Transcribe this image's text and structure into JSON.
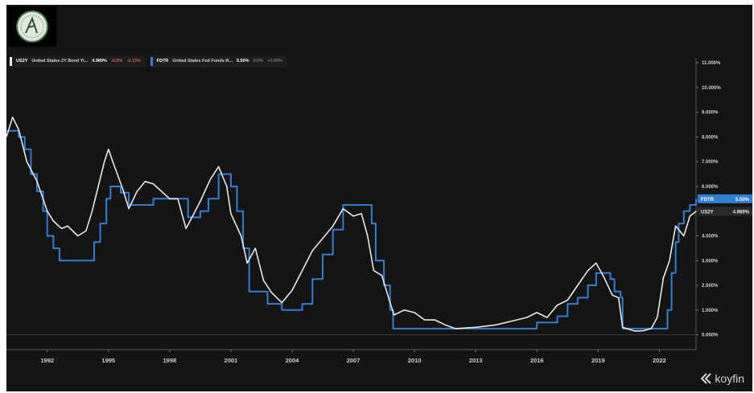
{
  "legend": [
    {
      "code": "US2Y",
      "name": "United States 2Y Bond Yi...",
      "value": "4.989%",
      "change1": "-0.0%",
      "change2": "-0.13%",
      "color": "#e8e8e8"
    },
    {
      "code": "FDTR",
      "name": "United States Fed Funds R...",
      "value": "5.50%",
      "change1": "0.0%",
      "change2": "+0.00%",
      "color": "#2f7fd6"
    }
  ],
  "brand": "koyfin",
  "chart_data": {
    "type": "line",
    "x_ticks": [
      "1992",
      "1995",
      "1998",
      "2001",
      "2004",
      "2007",
      "2010",
      "2013",
      "2016",
      "2019",
      "2022"
    ],
    "x_tick_values": [
      1992,
      1995,
      1998,
      2001,
      2004,
      2007,
      2010,
      2013,
      2016,
      2019,
      2022
    ],
    "y_ticks": [
      "11.000%",
      "10.000%",
      "9.000%",
      "8.000%",
      "7.000%",
      "6.000%",
      "5.000%",
      "4.000%",
      "3.000%",
      "2.000%",
      "1.000%",
      "0.000%"
    ],
    "y_tick_values": [
      11,
      10,
      9,
      8,
      7,
      6,
      5,
      4,
      3,
      2,
      1,
      0
    ],
    "xlim": [
      1990.0,
      2023.8
    ],
    "ylim": [
      -0.6,
      11.2
    ],
    "grid": false,
    "end_labels": [
      {
        "code": "FDTR",
        "value": "5.50%",
        "color": "#2f7fd6"
      },
      {
        "code": "US2Y",
        "value": "4.989%",
        "color": "#e8e8e8"
      }
    ],
    "series": [
      {
        "name": "US2Y",
        "color": "#e8e8e8",
        "points": [
          [
            1990.0,
            8.0
          ],
          [
            1990.3,
            8.8
          ],
          [
            1990.6,
            8.3
          ],
          [
            1991.0,
            7.0
          ],
          [
            1991.5,
            6.2
          ],
          [
            1992.0,
            5.0
          ],
          [
            1992.3,
            4.6
          ],
          [
            1992.7,
            4.3
          ],
          [
            1993.0,
            4.4
          ],
          [
            1993.5,
            4.0
          ],
          [
            1993.9,
            4.2
          ],
          [
            1994.2,
            5.0
          ],
          [
            1994.5,
            6.0
          ],
          [
            1994.8,
            7.0
          ],
          [
            1995.0,
            7.5
          ],
          [
            1995.3,
            6.8
          ],
          [
            1995.7,
            5.9
          ],
          [
            1996.0,
            5.1
          ],
          [
            1996.4,
            5.8
          ],
          [
            1996.8,
            6.2
          ],
          [
            1997.2,
            6.1
          ],
          [
            1997.6,
            5.8
          ],
          [
            1998.0,
            5.5
          ],
          [
            1998.4,
            5.5
          ],
          [
            1998.8,
            4.3
          ],
          [
            1999.0,
            4.6
          ],
          [
            1999.5,
            5.4
          ],
          [
            2000.0,
            6.3
          ],
          [
            2000.4,
            6.8
          ],
          [
            2000.8,
            6.0
          ],
          [
            2001.0,
            4.9
          ],
          [
            2001.5,
            4.0
          ],
          [
            2001.8,
            2.9
          ],
          [
            2002.2,
            3.5
          ],
          [
            2002.6,
            2.2
          ],
          [
            2003.0,
            1.7
          ],
          [
            2003.5,
            1.3
          ],
          [
            2004.0,
            1.8
          ],
          [
            2004.5,
            2.6
          ],
          [
            2005.0,
            3.4
          ],
          [
            2005.5,
            3.9
          ],
          [
            2006.0,
            4.4
          ],
          [
            2006.5,
            5.1
          ],
          [
            2007.0,
            4.8
          ],
          [
            2007.4,
            4.9
          ],
          [
            2007.7,
            4.0
          ],
          [
            2008.0,
            2.6
          ],
          [
            2008.4,
            2.4
          ],
          [
            2008.8,
            1.3
          ],
          [
            2009.0,
            0.8
          ],
          [
            2009.5,
            1.0
          ],
          [
            2010.0,
            0.9
          ],
          [
            2010.5,
            0.6
          ],
          [
            2011.0,
            0.6
          ],
          [
            2011.5,
            0.4
          ],
          [
            2012.0,
            0.25
          ],
          [
            2013.0,
            0.3
          ],
          [
            2013.5,
            0.35
          ],
          [
            2014.0,
            0.4
          ],
          [
            2014.5,
            0.5
          ],
          [
            2015.0,
            0.6
          ],
          [
            2015.5,
            0.7
          ],
          [
            2016.0,
            0.9
          ],
          [
            2016.5,
            0.7
          ],
          [
            2017.0,
            1.2
          ],
          [
            2017.5,
            1.4
          ],
          [
            2018.0,
            2.0
          ],
          [
            2018.5,
            2.6
          ],
          [
            2018.9,
            2.9
          ],
          [
            2019.3,
            2.3
          ],
          [
            2019.7,
            1.6
          ],
          [
            2020.0,
            1.5
          ],
          [
            2020.2,
            0.3
          ],
          [
            2020.8,
            0.15
          ],
          [
            2021.2,
            0.16
          ],
          [
            2021.6,
            0.25
          ],
          [
            2021.9,
            0.7
          ],
          [
            2022.2,
            2.3
          ],
          [
            2022.5,
            3.0
          ],
          [
            2022.8,
            4.4
          ],
          [
            2023.0,
            4.2
          ],
          [
            2023.2,
            4.0
          ],
          [
            2023.5,
            4.8
          ],
          [
            2023.8,
            4.99
          ]
        ]
      },
      {
        "name": "FDTR",
        "color": "#2f7fd6",
        "points": [
          [
            1990.0,
            8.25
          ],
          [
            1990.6,
            8.0
          ],
          [
            1990.9,
            7.5
          ],
          [
            1991.2,
            6.5
          ],
          [
            1991.5,
            5.8
          ],
          [
            1991.8,
            5.0
          ],
          [
            1992.0,
            4.0
          ],
          [
            1992.3,
            3.5
          ],
          [
            1992.6,
            3.0
          ],
          [
            1994.1,
            3.0
          ],
          [
            1994.3,
            3.75
          ],
          [
            1994.6,
            4.5
          ],
          [
            1994.9,
            5.5
          ],
          [
            1995.1,
            6.0
          ],
          [
            1995.6,
            5.75
          ],
          [
            1996.0,
            5.25
          ],
          [
            1997.2,
            5.5
          ],
          [
            1998.8,
            5.5
          ],
          [
            1998.9,
            4.75
          ],
          [
            1999.5,
            5.0
          ],
          [
            1999.9,
            5.5
          ],
          [
            2000.4,
            6.5
          ],
          [
            2001.0,
            6.0
          ],
          [
            2001.3,
            5.0
          ],
          [
            2001.6,
            3.5
          ],
          [
            2001.9,
            1.75
          ],
          [
            2002.8,
            1.25
          ],
          [
            2003.5,
            1.0
          ],
          [
            2004.5,
            1.25
          ],
          [
            2005.0,
            2.25
          ],
          [
            2005.5,
            3.25
          ],
          [
            2006.0,
            4.25
          ],
          [
            2006.5,
            5.25
          ],
          [
            2007.6,
            5.25
          ],
          [
            2007.9,
            4.5
          ],
          [
            2008.1,
            3.0
          ],
          [
            2008.5,
            2.0
          ],
          [
            2008.8,
            1.0
          ],
          [
            2008.95,
            0.25
          ],
          [
            2015.9,
            0.25
          ],
          [
            2016.0,
            0.5
          ],
          [
            2016.9,
            0.5
          ],
          [
            2017.0,
            0.75
          ],
          [
            2017.5,
            1.25
          ],
          [
            2018.0,
            1.5
          ],
          [
            2018.5,
            2.0
          ],
          [
            2018.9,
            2.5
          ],
          [
            2019.5,
            2.5
          ],
          [
            2019.6,
            2.25
          ],
          [
            2019.8,
            1.75
          ],
          [
            2020.1,
            1.5
          ],
          [
            2020.2,
            0.25
          ],
          [
            2022.2,
            0.25
          ],
          [
            2022.4,
            1.0
          ],
          [
            2022.6,
            2.5
          ],
          [
            2022.8,
            3.75
          ],
          [
            2022.95,
            4.5
          ],
          [
            2023.2,
            5.0
          ],
          [
            2023.5,
            5.25
          ],
          [
            2023.8,
            5.5
          ]
        ]
      }
    ]
  }
}
